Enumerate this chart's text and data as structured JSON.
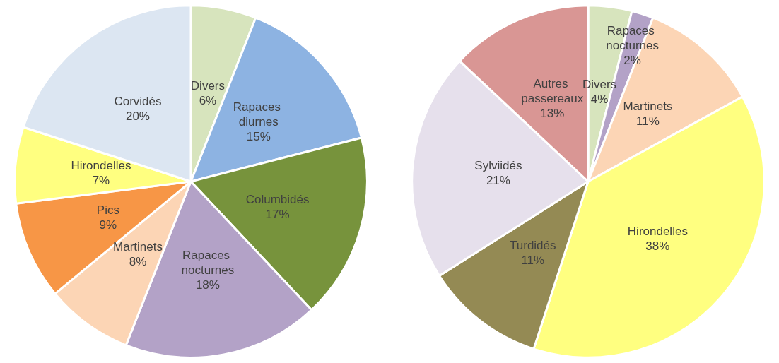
{
  "chart_data": [
    {
      "type": "pie",
      "categories": [
        "Divers",
        "Rapaces diurnes",
        "Columbidés",
        "Rapaces nocturnes",
        "Martinets",
        "Pics",
        "Hirondelles",
        "Corvidés"
      ],
      "values": [
        6,
        15,
        17,
        18,
        8,
        9,
        7,
        20
      ],
      "value_labels": [
        "6%",
        "15%",
        "17%",
        "18%",
        "8%",
        "9%",
        "7%",
        "20%"
      ],
      "colors": [
        "#d7e4bd",
        "#8db3e2",
        "#77933c",
        "#b3a2c7",
        "#fcd5b5",
        "#f79646",
        "#ffff80",
        "#dce6f2"
      ]
    },
    {
      "type": "pie",
      "categories": [
        "Divers",
        "Rapaces nocturnes",
        "Martinets",
        "Hirondelles",
        "Turdidés",
        "Sylviidés",
        "Autres passereaux"
      ],
      "values": [
        4,
        2,
        11,
        38,
        11,
        21,
        13
      ],
      "value_labels": [
        "4%",
        "2%",
        "11%",
        "38%",
        "11%",
        "21%",
        "13%"
      ],
      "colors": [
        "#d7e4bd",
        "#b3a2c7",
        "#fcd5b5",
        "#ffff80",
        "#948a54",
        "#e6e0ec",
        "#d99694"
      ]
    }
  ]
}
